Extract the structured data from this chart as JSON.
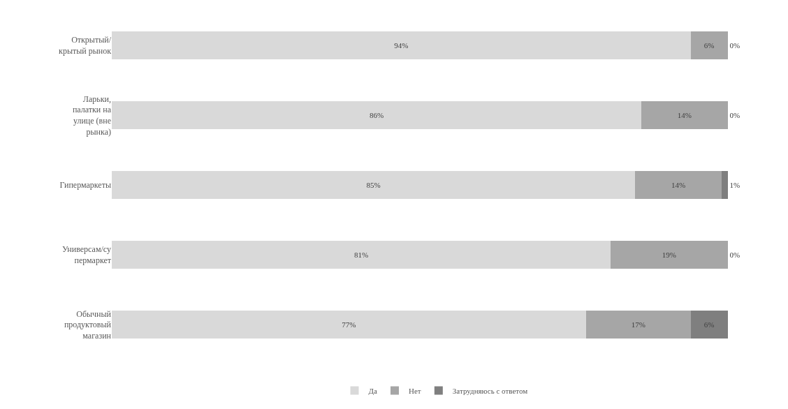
{
  "chart_data": {
    "type": "bar",
    "orientation": "horizontal",
    "stacked": true,
    "legend": "bottom",
    "categories": [
      "Открытый/\nкрытый рынок",
      "Ларьки,\nпалатки на\nулице (вне\nрынка)",
      "Гипермаркеты",
      "Универсам/су\nпермаркет",
      "Обычный\nпродуктовый\nмагазин"
    ],
    "series": [
      {
        "name": "Да",
        "color": "#d9d9d9",
        "values": [
          94,
          86,
          85,
          81,
          77
        ],
        "value_labels": [
          "94%",
          "86%",
          "85%",
          "81%",
          "77%"
        ]
      },
      {
        "name": "Нет",
        "color": "#a6a6a6",
        "values": [
          6,
          14,
          14,
          19,
          17
        ],
        "value_labels": [
          "6%",
          "14%",
          "14%",
          "19%",
          "17%"
        ]
      },
      {
        "name": "Затрудняюсь с ответом",
        "color": "#7f7f7f",
        "values": [
          0,
          0,
          1,
          0,
          6
        ],
        "value_labels": [
          "0%",
          "0%",
          "1%",
          "0%",
          "6%"
        ]
      }
    ]
  }
}
